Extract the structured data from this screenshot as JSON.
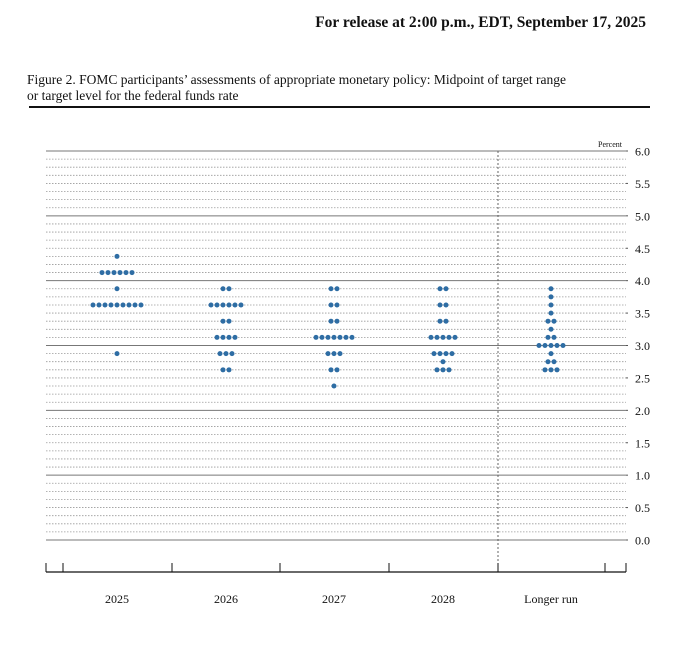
{
  "header": {
    "release": "For release at 2:00 p.m., EDT, September 17, 2025"
  },
  "figure": {
    "caption_line1": "Figure 2. FOMC participants’ assessments of appropriate monetary policy: Midpoint of target range",
    "caption_line2": "or target level for the federal funds rate"
  },
  "chart_data": {
    "type": "scatter",
    "y_unit_label": "Percent",
    "ylim": [
      0.0,
      6.0
    ],
    "y_tick_labels": [
      "0.0",
      "0.5",
      "1.0",
      "1.5",
      "2.0",
      "2.5",
      "3.0",
      "3.5",
      "4.0",
      "4.5",
      "5.0",
      "5.5",
      "6.0"
    ],
    "categories": [
      "2025",
      "2026",
      "2027",
      "2028",
      "Longer run"
    ],
    "grid": true,
    "dot_color": "#2e6da4",
    "series": [
      {
        "category": "2025",
        "points": [
          {
            "y": 4.375,
            "count": 1
          },
          {
            "y": 4.125,
            "count": 6
          },
          {
            "y": 3.875,
            "count": 1
          },
          {
            "y": 3.625,
            "count": 9
          },
          {
            "y": 2.875,
            "count": 1
          }
        ]
      },
      {
        "category": "2026",
        "points": [
          {
            "y": 3.875,
            "count": 2
          },
          {
            "y": 3.625,
            "count": 6
          },
          {
            "y": 3.375,
            "count": 2
          },
          {
            "y": 3.125,
            "count": 4
          },
          {
            "y": 2.875,
            "count": 3
          },
          {
            "y": 2.625,
            "count": 2
          }
        ]
      },
      {
        "category": "2027",
        "points": [
          {
            "y": 3.875,
            "count": 2
          },
          {
            "y": 3.625,
            "count": 2
          },
          {
            "y": 3.375,
            "count": 2
          },
          {
            "y": 3.125,
            "count": 7
          },
          {
            "y": 2.875,
            "count": 3
          },
          {
            "y": 2.625,
            "count": 2
          },
          {
            "y": 2.375,
            "count": 1
          }
        ]
      },
      {
        "category": "2028",
        "points": [
          {
            "y": 3.875,
            "count": 2
          },
          {
            "y": 3.625,
            "count": 2
          },
          {
            "y": 3.375,
            "count": 2
          },
          {
            "y": 3.125,
            "count": 5
          },
          {
            "y": 2.875,
            "count": 4
          },
          {
            "y": 2.75,
            "count": 1
          },
          {
            "y": 2.625,
            "count": 3
          }
        ]
      },
      {
        "category": "Longer run",
        "points": [
          {
            "y": 3.875,
            "count": 1
          },
          {
            "y": 3.75,
            "count": 1
          },
          {
            "y": 3.625,
            "count": 1
          },
          {
            "y": 3.5,
            "count": 1
          },
          {
            "y": 3.375,
            "count": 2
          },
          {
            "y": 3.25,
            "count": 1
          },
          {
            "y": 3.125,
            "count": 2
          },
          {
            "y": 3.0,
            "count": 5
          },
          {
            "y": 2.875,
            "count": 1
          },
          {
            "y": 2.75,
            "count": 2
          },
          {
            "y": 2.625,
            "count": 3
          }
        ]
      }
    ]
  }
}
